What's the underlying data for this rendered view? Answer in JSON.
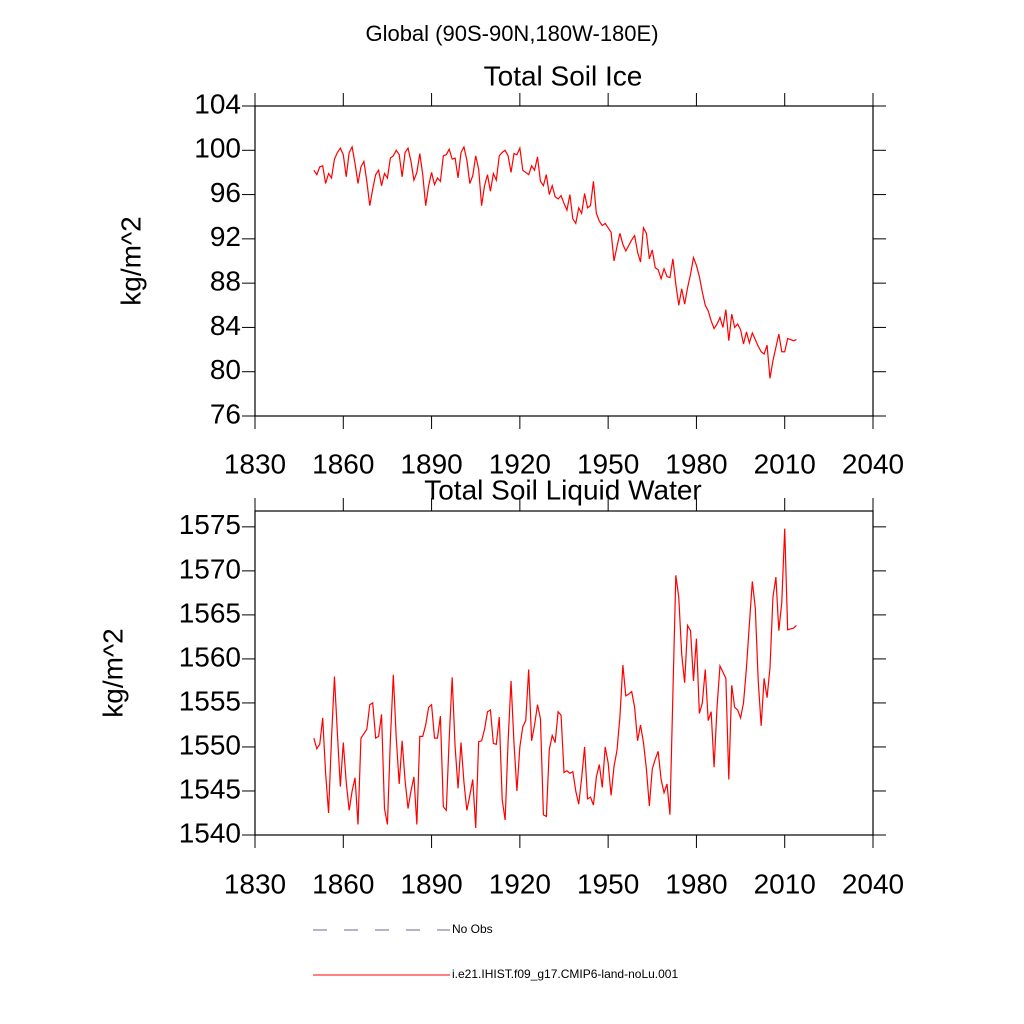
{
  "title": "Global (90S-90N,180W-180E)",
  "legend": [
    {
      "name": "No Obs",
      "color": "#6a6a8a",
      "dash": true
    },
    {
      "name": "i.e21.IHIST.f09_g17.CMIP6-land-noLu.001",
      "color": "#ff0000",
      "dash": false
    }
  ],
  "chart_data": [
    {
      "type": "line",
      "title": "Total Soil Ice",
      "y_label": "kg/m^2",
      "xlim": [
        1830,
        2040
      ],
      "xticks": [
        1830,
        1860,
        1890,
        1920,
        1950,
        1980,
        2010,
        2040
      ],
      "ylim": [
        76,
        104
      ],
      "yticks": [
        76,
        80,
        84,
        88,
        92,
        96,
        100,
        104
      ],
      "grid": false,
      "x": [
        1850,
        1851,
        1852,
        1853,
        1854,
        1855,
        1856,
        1857,
        1858,
        1859,
        1860,
        1861,
        1862,
        1863,
        1864,
        1865,
        1866,
        1867,
        1868,
        1869,
        1870,
        1871,
        1872,
        1873,
        1874,
        1875,
        1876,
        1877,
        1878,
        1879,
        1880,
        1881,
        1882,
        1883,
        1884,
        1885,
        1886,
        1887,
        1888,
        1889,
        1890,
        1891,
        1892,
        1893,
        1894,
        1895,
        1896,
        1897,
        1898,
        1899,
        1900,
        1901,
        1902,
        1903,
        1904,
        1905,
        1906,
        1907,
        1908,
        1909,
        1910,
        1911,
        1912,
        1913,
        1914,
        1915,
        1916,
        1917,
        1918,
        1919,
        1920,
        1921,
        1922,
        1923,
        1924,
        1925,
        1926,
        1927,
        1928,
        1929,
        1930,
        1931,
        1932,
        1933,
        1934,
        1935,
        1936,
        1937,
        1938,
        1939,
        1940,
        1941,
        1942,
        1943,
        1944,
        1945,
        1946,
        1947,
        1948,
        1949,
        1950,
        1951,
        1952,
        1953,
        1954,
        1955,
        1956,
        1957,
        1958,
        1959,
        1960,
        1961,
        1962,
        1963,
        1964,
        1965,
        1966,
        1967,
        1968,
        1969,
        1970,
        1971,
        1972,
        1973,
        1974,
        1975,
        1976,
        1977,
        1978,
        1979,
        1980,
        1981,
        1982,
        1983,
        1984,
        1985,
        1986,
        1987,
        1988,
        1989,
        1990,
        1991,
        1992,
        1993,
        1994,
        1995,
        1996,
        1997,
        1998,
        1999,
        2000,
        2001,
        2002,
        2003,
        2004,
        2005,
        2006,
        2007,
        2008,
        2009,
        2010,
        2011,
        2012,
        2013,
        2014
      ],
      "series": [
        {
          "color": "#ff0000",
          "values": [
            98.2,
            97.8,
            98.5,
            98.6,
            97.0,
            97.9,
            97.5,
            99.2,
            99.8,
            100.2,
            99.6,
            97.6,
            99.8,
            100.3,
            98.8,
            97.0,
            98.5,
            99.0,
            97.2,
            95.0,
            96.5,
            97.8,
            98.2,
            96.8,
            97.9,
            97.5,
            99.3,
            99.5,
            100.0,
            99.6,
            97.6,
            99.8,
            100.2,
            99.0,
            97.3,
            98.0,
            99.7,
            97.8,
            95.0,
            96.8,
            98.0,
            96.9,
            97.5,
            97.2,
            99.5,
            99.6,
            100.1,
            99.2,
            99.3,
            97.5,
            99.8,
            100.3,
            99.1,
            97.0,
            97.7,
            99.5,
            98.3,
            95.0,
            96.8,
            97.8,
            96.3,
            97.9,
            97.3,
            99.5,
            99.8,
            100.0,
            99.5,
            98.0,
            99.7,
            99.6,
            100.2,
            98.2,
            98.0,
            97.8,
            98.6,
            98.2,
            99.4,
            97.2,
            96.8,
            97.8,
            96.0,
            96.8,
            95.8,
            95.6,
            95.9,
            95.2,
            94.6,
            96.0,
            93.8,
            93.4,
            94.8,
            94.3,
            96.1,
            94.8,
            95.0,
            97.2,
            94.3,
            93.6,
            93.2,
            93.4,
            93.0,
            92.6,
            90.0,
            91.3,
            92.5,
            91.5,
            90.9,
            91.4,
            91.9,
            92.3,
            90.8,
            89.9,
            93.0,
            92.5,
            90.2,
            91.0,
            89.4,
            89.2,
            88.4,
            89.3,
            88.6,
            88.5,
            90.2,
            87.9,
            86.0,
            87.5,
            86.1,
            87.6,
            88.8,
            90.3,
            89.6,
            88.6,
            87.2,
            86.0,
            85.5,
            84.6,
            83.9,
            84.3,
            84.9,
            84.0,
            85.6,
            82.8,
            85.2,
            84.0,
            84.3,
            83.8,
            82.5,
            83.6,
            82.6,
            83.5,
            82.9,
            82.3,
            81.8,
            81.6,
            82.4,
            79.4,
            81.0,
            82.2,
            83.4,
            81.8,
            81.8,
            83.0,
            82.9,
            82.8,
            82.9
          ]
        }
      ]
    },
    {
      "type": "line",
      "title": "Total Soil Liquid Water",
      "y_label": "kg/m^2",
      "xlim": [
        1830,
        2040
      ],
      "xticks": [
        1830,
        1860,
        1890,
        1920,
        1950,
        1980,
        2010,
        2040
      ],
      "ylim": [
        1540,
        1576.8
      ],
      "yticks": [
        1540,
        1545,
        1550,
        1555,
        1560,
        1565,
        1570,
        1575
      ],
      "grid": false,
      "x": [
        1850,
        1851,
        1852,
        1853,
        1854,
        1855,
        1856,
        1857,
        1858,
        1859,
        1860,
        1861,
        1862,
        1863,
        1864,
        1865,
        1866,
        1867,
        1868,
        1869,
        1870,
        1871,
        1872,
        1873,
        1874,
        1875,
        1876,
        1877,
        1878,
        1879,
        1880,
        1881,
        1882,
        1883,
        1884,
        1885,
        1886,
        1887,
        1888,
        1889,
        1890,
        1891,
        1892,
        1893,
        1894,
        1895,
        1896,
        1897,
        1898,
        1899,
        1900,
        1901,
        1902,
        1903,
        1904,
        1905,
        1906,
        1907,
        1908,
        1909,
        1910,
        1911,
        1912,
        1913,
        1914,
        1915,
        1916,
        1917,
        1918,
        1919,
        1920,
        1921,
        1922,
        1923,
        1924,
        1925,
        1926,
        1927,
        1928,
        1929,
        1930,
        1931,
        1932,
        1933,
        1934,
        1935,
        1936,
        1937,
        1938,
        1939,
        1940,
        1941,
        1942,
        1943,
        1944,
        1945,
        1946,
        1947,
        1948,
        1949,
        1950,
        1951,
        1952,
        1953,
        1954,
        1955,
        1956,
        1957,
        1958,
        1959,
        1960,
        1961,
        1962,
        1963,
        1964,
        1965,
        1966,
        1967,
        1968,
        1969,
        1970,
        1971,
        1972,
        1973,
        1974,
        1975,
        1976,
        1977,
        1978,
        1979,
        1980,
        1981,
        1982,
        1983,
        1984,
        1985,
        1986,
        1987,
        1988,
        1989,
        1990,
        1991,
        1992,
        1993,
        1994,
        1995,
        1996,
        1997,
        1998,
        1999,
        2000,
        2001,
        2002,
        2003,
        2004,
        2005,
        2006,
        2007,
        2008,
        2009,
        2010,
        2011,
        2012,
        2013,
        2014
      ],
      "series": [
        {
          "color": "#ff0000",
          "values": [
            1551,
            1549.8,
            1550.3,
            1553.3,
            1547,
            1542.5,
            1551,
            1558,
            1551.5,
            1545.5,
            1550.5,
            1546,
            1542.8,
            1545,
            1546.5,
            1541.2,
            1551,
            1551.5,
            1552,
            1554.8,
            1555,
            1551,
            1551.2,
            1553.7,
            1543,
            1541.2,
            1550.8,
            1558.2,
            1551,
            1545.8,
            1550.7,
            1546.2,
            1543,
            1545,
            1546.6,
            1541.2,
            1551.2,
            1551.2,
            1552.5,
            1554.5,
            1554.8,
            1551,
            1551,
            1553.5,
            1543.2,
            1542.8,
            1551,
            1557.9,
            1550,
            1545.3,
            1550.5,
            1546,
            1542.8,
            1544.5,
            1546.3,
            1540.8,
            1550.6,
            1550.7,
            1552,
            1554,
            1554.2,
            1550.4,
            1550.3,
            1553.4,
            1544,
            1541.7,
            1550.6,
            1557.5,
            1550.5,
            1545,
            1550,
            1552.3,
            1553,
            1558.8,
            1550.7,
            1552.5,
            1554.8,
            1553.2,
            1542.3,
            1542.1,
            1549.7,
            1551.3,
            1550.5,
            1554,
            1553.6,
            1547.1,
            1547.3,
            1547,
            1547.2,
            1545,
            1543.5,
            1546.5,
            1550,
            1544.1,
            1544.3,
            1543.4,
            1546.6,
            1548,
            1545.4,
            1550,
            1548.2,
            1544.5,
            1547.8,
            1549.6,
            1553.4,
            1559.3,
            1555.8,
            1556,
            1556.3,
            1554.5,
            1550.7,
            1552.5,
            1550.5,
            1547.5,
            1543.3,
            1547.5,
            1548.6,
            1549.5,
            1546.3,
            1544.8,
            1545.8,
            1542.3,
            1556,
            1569.5,
            1567,
            1560.5,
            1557.3,
            1563.8,
            1563.2,
            1557.5,
            1562.3,
            1553.8,
            1555,
            1558.8,
            1553,
            1554,
            1547.7,
            1554.5,
            1559.2,
            1558.5,
            1557.8,
            1546.3,
            1557,
            1554.5,
            1554.2,
            1553.3,
            1555,
            1559,
            1564,
            1568.8,
            1565.8,
            1557.5,
            1552.4,
            1557.8,
            1555.6,
            1559,
            1567,
            1569.3,
            1563.2,
            1566.4,
            1574.8,
            1563.3,
            1563.4,
            1563.5,
            1563.8
          ]
        }
      ]
    }
  ]
}
